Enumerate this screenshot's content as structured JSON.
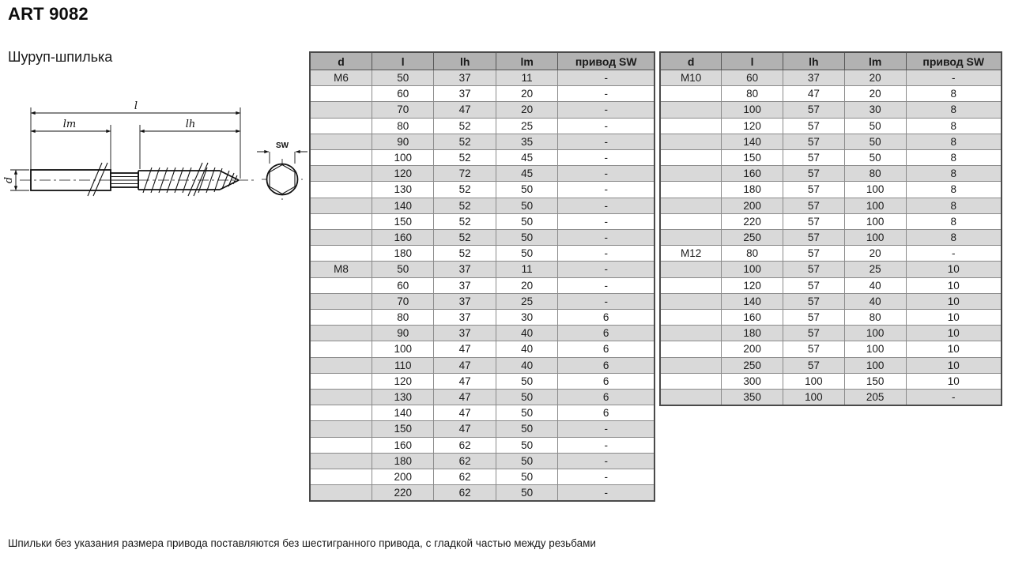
{
  "page": {
    "title": "ART 9082",
    "subtitle": "Шуруп-шпилька",
    "note": "Шпильки без указания размера привода поставляются без шестигранного привода, с гладкой частью между резьбами"
  },
  "colors": {
    "header_bg": "#b2b2b2",
    "alt_row_bg": "#d9d9d9",
    "outer_border": "#4a4a4a",
    "inner_border": "#8a8a8a"
  },
  "diagram": {
    "length_label": "l",
    "machine_thread_label": "lm",
    "wood_thread_label": "lh",
    "diameter_label": "d",
    "hex_label": "SW"
  },
  "tables": [
    {
      "headers": [
        "d",
        "l",
        "lh",
        "lm",
        "привод SW"
      ],
      "rows": [
        [
          "M6",
          "50",
          "37",
          "11",
          "-"
        ],
        [
          "",
          "60",
          "37",
          "20",
          "-"
        ],
        [
          "",
          "70",
          "47",
          "20",
          "-"
        ],
        [
          "",
          "80",
          "52",
          "25",
          "-"
        ],
        [
          "",
          "90",
          "52",
          "35",
          "-"
        ],
        [
          "",
          "100",
          "52",
          "45",
          "-"
        ],
        [
          "",
          "120",
          "72",
          "45",
          "-"
        ],
        [
          "",
          "130",
          "52",
          "50",
          "-"
        ],
        [
          "",
          "140",
          "52",
          "50",
          "-"
        ],
        [
          "",
          "150",
          "52",
          "50",
          "-"
        ],
        [
          "",
          "160",
          "52",
          "50",
          "-"
        ],
        [
          "",
          "180",
          "52",
          "50",
          "-"
        ],
        [
          "M8",
          "50",
          "37",
          "11",
          "-"
        ],
        [
          "",
          "60",
          "37",
          "20",
          "-"
        ],
        [
          "",
          "70",
          "37",
          "25",
          "-"
        ],
        [
          "",
          "80",
          "37",
          "30",
          "6"
        ],
        [
          "",
          "90",
          "37",
          "40",
          "6"
        ],
        [
          "",
          "100",
          "47",
          "40",
          "6"
        ],
        [
          "",
          "110",
          "47",
          "40",
          "6"
        ],
        [
          "",
          "120",
          "47",
          "50",
          "6"
        ],
        [
          "",
          "130",
          "47",
          "50",
          "6"
        ],
        [
          "",
          "140",
          "47",
          "50",
          "6"
        ],
        [
          "",
          "150",
          "47",
          "50",
          "-"
        ],
        [
          "",
          "160",
          "62",
          "50",
          "-"
        ],
        [
          "",
          "180",
          "62",
          "50",
          "-"
        ],
        [
          "",
          "200",
          "62",
          "50",
          "-"
        ],
        [
          "",
          "220",
          "62",
          "50",
          "-"
        ]
      ]
    },
    {
      "headers": [
        "d",
        "l",
        "lh",
        "lm",
        "привод SW"
      ],
      "rows": [
        [
          "M10",
          "60",
          "37",
          "20",
          "-"
        ],
        [
          "",
          "80",
          "47",
          "20",
          "8"
        ],
        [
          "",
          "100",
          "57",
          "30",
          "8"
        ],
        [
          "",
          "120",
          "57",
          "50",
          "8"
        ],
        [
          "",
          "140",
          "57",
          "50",
          "8"
        ],
        [
          "",
          "150",
          "57",
          "50",
          "8"
        ],
        [
          "",
          "160",
          "57",
          "80",
          "8"
        ],
        [
          "",
          "180",
          "57",
          "100",
          "8"
        ],
        [
          "",
          "200",
          "57",
          "100",
          "8"
        ],
        [
          "",
          "220",
          "57",
          "100",
          "8"
        ],
        [
          "",
          "250",
          "57",
          "100",
          "8"
        ],
        [
          "M12",
          "80",
          "57",
          "20",
          "-"
        ],
        [
          "",
          "100",
          "57",
          "25",
          "10"
        ],
        [
          "",
          "120",
          "57",
          "40",
          "10"
        ],
        [
          "",
          "140",
          "57",
          "40",
          "10"
        ],
        [
          "",
          "160",
          "57",
          "80",
          "10"
        ],
        [
          "",
          "180",
          "57",
          "100",
          "10"
        ],
        [
          "",
          "200",
          "57",
          "100",
          "10"
        ],
        [
          "",
          "250",
          "57",
          "100",
          "10"
        ],
        [
          "",
          "300",
          "100",
          "150",
          "10"
        ],
        [
          "",
          "350",
          "100",
          "205",
          "-"
        ]
      ]
    }
  ]
}
